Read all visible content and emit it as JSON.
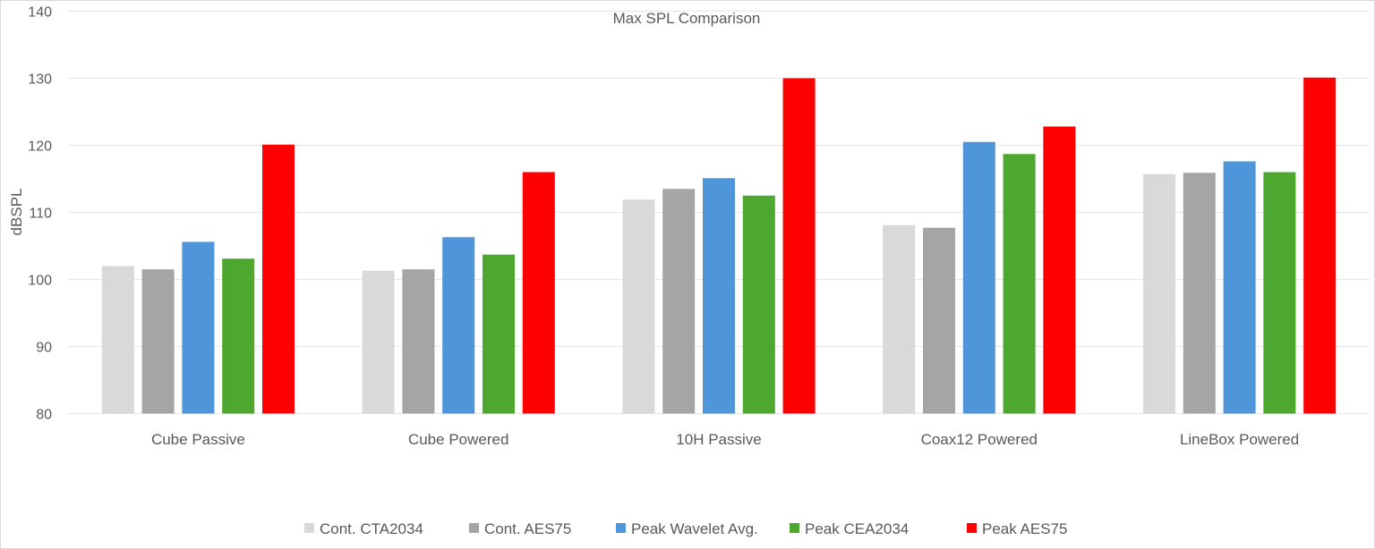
{
  "chart_data": {
    "type": "bar",
    "title": "Max SPL Comparison",
    "xlabel": "",
    "ylabel": "dBSPL",
    "ylim": [
      80,
      140
    ],
    "yticks": [
      80,
      90,
      100,
      110,
      120,
      130,
      140
    ],
    "grid": true,
    "legend_position": "bottom",
    "categories": [
      "Cube Passive",
      "Cube Powered",
      "10H Passive",
      "Coax12 Powered",
      "LineBox Powered"
    ],
    "series": [
      {
        "name": "Cont. CTA2034",
        "color": "#d9d9d9",
        "values": [
          102.0,
          101.3,
          111.9,
          108.1,
          115.7
        ]
      },
      {
        "name": "Cont. AES75",
        "color": "#a5a5a5",
        "values": [
          101.5,
          101.5,
          113.5,
          107.7,
          115.9
        ]
      },
      {
        "name": "Peak Wavelet Avg.",
        "color": "#4e95d9",
        "values": [
          105.6,
          106.3,
          115.1,
          120.5,
          117.6
        ]
      },
      {
        "name": "Peak CEA2034",
        "color": "#4ea72e",
        "values": [
          103.1,
          103.7,
          112.5,
          118.7,
          116.0
        ]
      },
      {
        "name": "Peak AES75",
        "color": "#ff0000",
        "values": [
          120.1,
          116.0,
          130.0,
          122.8,
          130.1
        ]
      }
    ]
  }
}
